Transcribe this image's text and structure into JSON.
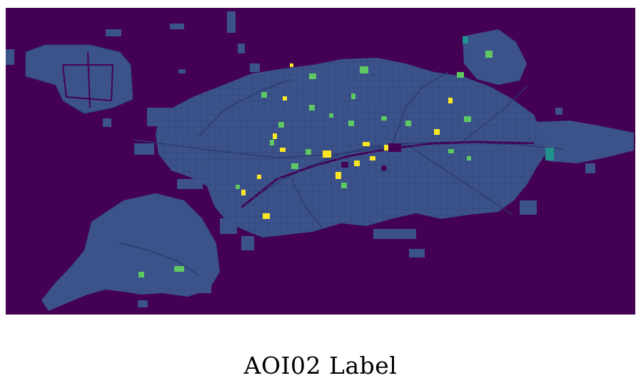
{
  "figure": {
    "caption": "AOI02 Label"
  },
  "map": {
    "colors": {
      "background": "#440154",
      "label_low": "#3b528b",
      "label_mid": "#5ec962",
      "label_high": "#fde725",
      "label_teal": "#21918c"
    }
  }
}
